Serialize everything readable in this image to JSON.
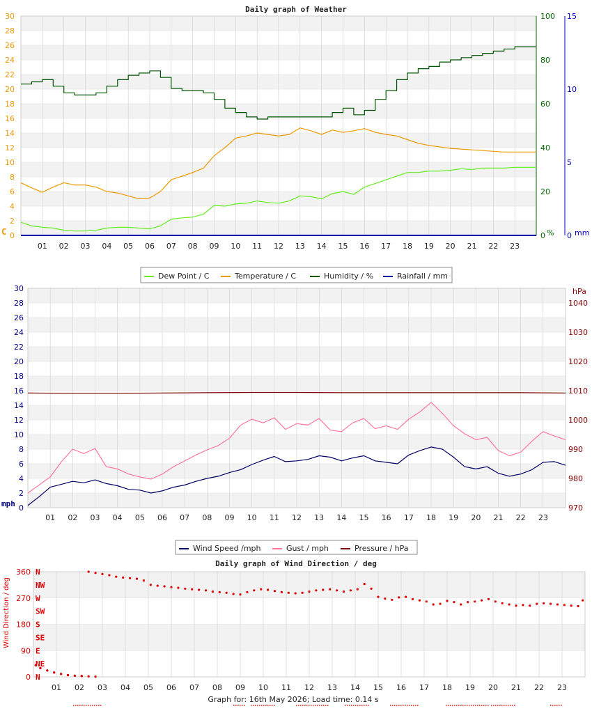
{
  "footer": "Graph for: 16th May 2026; Load time: 0.14 s",
  "x_tick_labels": [
    "01",
    "02",
    "03",
    "04",
    "05",
    "06",
    "07",
    "08",
    "09",
    "10",
    "11",
    "12",
    "13",
    "14",
    "15",
    "16",
    "17",
    "18",
    "19",
    "20",
    "21",
    "22",
    "23"
  ],
  "colors": {
    "dew_point": "#66ee22",
    "temperature": "#ee9900",
    "humidity": "#005500",
    "rainfall": "#0000aa",
    "wind_speed": "#000066",
    "gust": "#ff7799",
    "pressure": "#770000",
    "direction": "#dd0000",
    "band": "#f2f2f2",
    "grid": "#dddddd",
    "temp_axis": "#ee9900",
    "hum_axis": "#006600",
    "rain_axis": "#0000bb",
    "speed_axis": "#000088",
    "pressure_axis": "#880000"
  },
  "chart_data": [
    {
      "type": "line",
      "title": "Daily graph of Weather",
      "x_unit": "hour",
      "xlim": [
        0,
        24
      ],
      "axes": {
        "left": {
          "label": "C",
          "ticks": [
            "0",
            "2",
            "4",
            "6",
            "8",
            "10",
            "12",
            "14",
            "16",
            "18",
            "20",
            "22",
            "24",
            "26",
            "28",
            "30"
          ],
          "ylim": [
            0,
            30
          ]
        },
        "right1": {
          "label": "%",
          "ticks": [
            "0",
            "20",
            "40",
            "60",
            "80",
            "100"
          ],
          "ylim": [
            0,
            100
          ]
        },
        "right2": {
          "label": "mm",
          "ticks": [
            "0",
            "5",
            "10",
            "15"
          ],
          "ylim": [
            0,
            15
          ]
        }
      },
      "legend_position": "bottom-center",
      "grid": true,
      "series": [
        {
          "name": "Dew Point / C",
          "axis": "left",
          "x": [
            0,
            0.5,
            1,
            1.5,
            2,
            2.5,
            3,
            3.5,
            4,
            4.5,
            5,
            5.5,
            6,
            6.5,
            7,
            7.5,
            8,
            8.5,
            9,
            9.5,
            10,
            10.5,
            11,
            11.5,
            12,
            12.5,
            13,
            13.5,
            14,
            14.5,
            15,
            15.5,
            16,
            16.5,
            17,
            17.5,
            18,
            18.5,
            19,
            19.5,
            20,
            20.5,
            21,
            21.5,
            22,
            22.5,
            23,
            23.5,
            24
          ],
          "y": [
            1.8,
            1.3,
            1.1,
            1.0,
            0.7,
            0.6,
            0.6,
            0.7,
            1.0,
            1.1,
            1.1,
            1.0,
            0.9,
            1.3,
            2.2,
            2.4,
            2.5,
            2.9,
            4.1,
            4.0,
            4.3,
            4.4,
            4.7,
            4.5,
            4.4,
            4.7,
            5.4,
            5.3,
            5.0,
            5.7,
            6.0,
            5.6,
            6.6,
            7.1,
            7.6,
            8.1,
            8.6,
            8.6,
            8.8,
            8.8,
            8.9,
            9.1,
            9.0,
            9.2,
            9.2,
            9.2,
            9.3,
            9.3,
            9.3
          ]
        },
        {
          "name": "Temperature / C",
          "axis": "left",
          "x": [
            0,
            0.5,
            1,
            1.5,
            2,
            2.5,
            3,
            3.5,
            4,
            4.5,
            5,
            5.5,
            6,
            6.5,
            7,
            7.5,
            8,
            8.5,
            9,
            9.5,
            10,
            10.5,
            11,
            11.5,
            12,
            12.5,
            13,
            13.5,
            14,
            14.5,
            15,
            15.5,
            16,
            16.5,
            17,
            17.5,
            18,
            18.5,
            19,
            19.5,
            20,
            20.5,
            21,
            21.5,
            22,
            22.5,
            23,
            23.5,
            24
          ],
          "y": [
            7.2,
            6.5,
            5.9,
            6.6,
            7.2,
            6.9,
            6.9,
            6.6,
            6.0,
            5.8,
            5.4,
            5.0,
            5.1,
            6.0,
            7.6,
            8.1,
            8.6,
            9.2,
            10.9,
            12.0,
            13.3,
            13.6,
            14.0,
            13.8,
            13.6,
            13.8,
            14.7,
            14.3,
            13.8,
            14.4,
            14.1,
            14.3,
            14.6,
            14.1,
            13.8,
            13.6,
            13.1,
            12.6,
            12.3,
            12.1,
            11.9,
            11.8,
            11.7,
            11.6,
            11.5,
            11.4,
            11.4,
            11.4,
            11.4
          ]
        },
        {
          "name": "Humidity / %",
          "axis": "right1",
          "x": [
            0,
            0.5,
            1,
            1.5,
            2,
            2.5,
            3,
            3.5,
            4,
            4.5,
            5,
            5.5,
            6,
            6.5,
            7,
            7.5,
            8,
            8.5,
            9,
            9.5,
            10,
            10.5,
            11,
            11.5,
            12,
            12.5,
            13,
            13.5,
            14,
            14.5,
            15,
            15.5,
            16,
            16.5,
            17,
            17.5,
            18,
            18.5,
            19,
            19.5,
            20,
            20.5,
            21,
            21.5,
            22,
            22.5,
            23,
            23.5,
            24
          ],
          "y": [
            69,
            70,
            71,
            68,
            65,
            64,
            64,
            65,
            68,
            71,
            73,
            74,
            75,
            72,
            67,
            66,
            66,
            65,
            62,
            58,
            56,
            54,
            53,
            54,
            54,
            54,
            54,
            54,
            54,
            56,
            58,
            55,
            57,
            62,
            66,
            71,
            74,
            76,
            77,
            79,
            80,
            81,
            82,
            83,
            84,
            85,
            86,
            86,
            86
          ]
        },
        {
          "name": "Rainfall / mm",
          "axis": "right2",
          "x": [
            0,
            24
          ],
          "y": [
            0,
            0
          ]
        }
      ]
    },
    {
      "type": "line",
      "title": "",
      "x_unit": "hour",
      "xlim": [
        0,
        24
      ],
      "axes": {
        "left": {
          "label": "mph",
          "ticks": [
            "0",
            "2",
            "4",
            "6",
            "8",
            "10",
            "12",
            "14",
            "16",
            "18",
            "20",
            "22",
            "24",
            "26",
            "28",
            "30"
          ],
          "ylim": [
            0,
            30
          ]
        },
        "right": {
          "label": "hPa",
          "ticks": [
            "970",
            "980",
            "990",
            "1000",
            "1010",
            "1020",
            "1030",
            "1040"
          ],
          "ylim": [
            970,
            1045
          ]
        }
      },
      "legend_position": "bottom-center",
      "grid": true,
      "series": [
        {
          "name": "Wind Speed /mph",
          "axis": "left",
          "x": [
            0,
            0.5,
            1,
            1.5,
            2,
            2.5,
            3,
            3.5,
            4,
            4.5,
            5,
            5.5,
            6,
            6.5,
            7,
            7.5,
            8,
            8.5,
            9,
            9.5,
            10,
            10.5,
            11,
            11.5,
            12,
            12.5,
            13,
            13.5,
            14,
            14.5,
            15,
            15.5,
            16,
            16.5,
            17,
            17.5,
            18,
            18.5,
            19,
            19.5,
            20,
            20.5,
            21,
            21.5,
            22,
            22.5,
            23,
            23.5,
            24
          ],
          "y": [
            0.3,
            1.5,
            2.8,
            3.2,
            3.6,
            3.4,
            3.8,
            3.3,
            3.0,
            2.5,
            2.4,
            2.0,
            2.3,
            2.8,
            3.1,
            3.6,
            4.0,
            4.3,
            4.8,
            5.2,
            5.9,
            6.5,
            7.0,
            6.3,
            6.4,
            6.6,
            7.1,
            6.9,
            6.4,
            6.8,
            7.1,
            6.4,
            6.2,
            6.0,
            7.2,
            7.8,
            8.3,
            8.0,
            6.9,
            5.6,
            5.3,
            5.6,
            4.7,
            4.3,
            4.6,
            5.2,
            6.2,
            6.3,
            5.8
          ]
        },
        {
          "name": "Gust / mph",
          "axis": "left",
          "x": [
            0,
            0.5,
            1,
            1.5,
            2,
            2.5,
            3,
            3.5,
            4,
            4.5,
            5,
            5.5,
            6,
            6.5,
            7,
            7.5,
            8,
            8.5,
            9,
            9.5,
            10,
            10.5,
            11,
            11.5,
            12,
            12.5,
            13,
            13.5,
            14,
            14.5,
            15,
            15.5,
            16,
            16.5,
            17,
            17.5,
            18,
            18.5,
            19,
            19.5,
            20,
            20.5,
            21,
            21.5,
            22,
            22.5,
            23,
            23.5,
            24
          ],
          "y": [
            2.0,
            3.1,
            4.2,
            6.3,
            8.0,
            7.4,
            8.1,
            5.6,
            5.3,
            4.6,
            4.2,
            3.9,
            4.6,
            5.6,
            6.4,
            7.2,
            7.9,
            8.5,
            9.5,
            11.3,
            12.1,
            11.6,
            12.3,
            10.7,
            11.5,
            11.3,
            12.2,
            10.6,
            10.4,
            11.6,
            12.2,
            10.8,
            11.2,
            10.7,
            12.1,
            13.1,
            14.4,
            12.9,
            11.2,
            10.1,
            9.3,
            9.6,
            7.8,
            7.1,
            7.6,
            9.1,
            10.4,
            9.8,
            9.3
          ]
        },
        {
          "name": "Pressure / hPa",
          "axis": "right",
          "x": [
            0,
            2,
            4,
            6,
            8,
            10,
            12,
            14,
            16,
            18,
            20,
            22,
            24
          ],
          "y": [
            1009.2,
            1009.1,
            1009.1,
            1009.2,
            1009.3,
            1009.4,
            1009.4,
            1009.3,
            1009.3,
            1009.3,
            1009.3,
            1009.3,
            1009.2
          ]
        }
      ]
    },
    {
      "type": "scatter",
      "title": "Daily graph of Wind Direction / deg",
      "ylabel": "Wind Direction / deg",
      "x_unit": "hour",
      "xlim": [
        0,
        24
      ],
      "ylim": [
        0,
        360
      ],
      "y_ticks": [
        "0",
        "90",
        "180",
        "270",
        "360"
      ],
      "compass_labels": [
        "N",
        "NE",
        "E",
        "SE",
        "S",
        "SW",
        "W",
        "NW",
        "N"
      ],
      "grid": true,
      "series": [
        {
          "name": "Wind Direction / deg",
          "x": [
            0.1,
            0.3,
            0.6,
            0.9,
            1.2,
            1.5,
            1.8,
            2.1,
            2.4,
            2.7,
            3.0,
            3.3,
            3.6,
            3.9,
            4.2,
            4.5,
            4.8,
            5.1,
            5.4,
            5.7,
            6.0,
            6.3,
            6.6,
            6.9,
            7.2,
            7.5,
            7.8,
            8.1,
            8.4,
            8.7,
            9.0,
            9.3,
            9.6,
            9.9,
            10.2,
            10.5,
            10.8,
            11.1,
            11.4,
            11.7,
            12.0,
            12.3,
            12.6,
            12.9,
            13.2,
            13.5,
            13.8,
            14.1,
            14.4,
            14.7,
            15.0,
            15.3,
            15.6,
            15.9,
            16.2,
            16.5,
            16.8,
            17.1,
            17.4,
            17.7,
            18.0,
            18.3,
            18.6,
            18.9,
            19.2,
            19.5,
            19.8,
            20.1,
            20.4,
            20.7,
            21.0,
            21.3,
            21.6,
            21.9,
            22.2,
            22.5,
            22.8,
            23.1,
            23.4,
            23.7,
            23.9
          ],
          "y": [
            40,
            30,
            22,
            15,
            10,
            6,
            4,
            3,
            360,
            356,
            352,
            348,
            343,
            340,
            338,
            336,
            330,
            315,
            312,
            310,
            307,
            305,
            302,
            300,
            298,
            296,
            292,
            290,
            288,
            284,
            282,
            290,
            296,
            300,
            298,
            294,
            290,
            288,
            286,
            288,
            292,
            296,
            298,
            300,
            296,
            292,
            296,
            300,
            318,
            302,
            274,
            268,
            264,
            272,
            274,
            266,
            262,
            258,
            248,
            250,
            260,
            256,
            248,
            256,
            258,
            262,
            266,
            258,
            252,
            248,
            244,
            246,
            244,
            250,
            252,
            250,
            248,
            246,
            244,
            242,
            262
          ]
        },
        {
          "name": "Wind Direction / deg (low)",
          "x": [
            0.1,
            0.3,
            0.6,
            0.9,
            1.2,
            1.5,
            1.8,
            2.1,
            2.4,
            2.7
          ],
          "y": [
            40,
            30,
            22,
            15,
            10,
            6,
            4,
            3,
            2,
            1
          ]
        }
      ]
    }
  ]
}
